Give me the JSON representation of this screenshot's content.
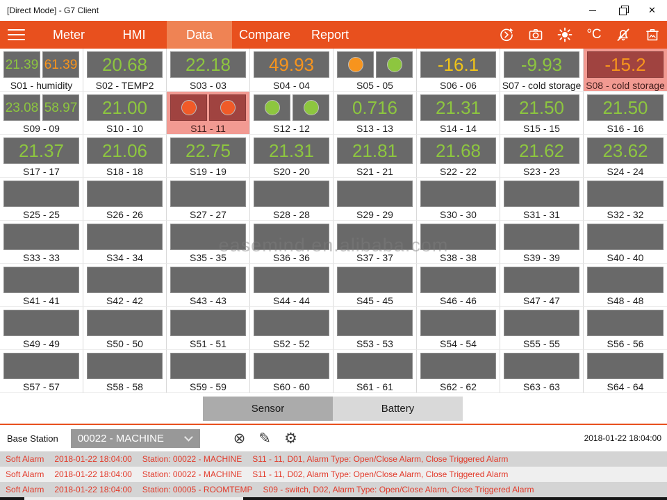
{
  "window": {
    "title": "[Direct Mode] - G7 Client"
  },
  "nav": {
    "items": [
      {
        "label": "Meter",
        "active": false
      },
      {
        "label": "HMI",
        "active": false
      },
      {
        "label": "Data",
        "active": true
      },
      {
        "label": "Compare",
        "active": false
      },
      {
        "label": "Report",
        "active": false
      }
    ],
    "icons": [
      "refresh-icon",
      "camera-icon",
      "brightness-icon",
      "temperature-unit-icon",
      "mute-alarm-icon",
      "snapshot-bin-icon"
    ],
    "temp_unit": "°C"
  },
  "colors": {
    "accent": "#e8501e",
    "accent_active_tab": "#ef8354",
    "green": "#8dc63f",
    "orange": "#f7941d",
    "yellow": "#f0c419",
    "red": "#f05a28",
    "alarm_cell_bg": "#f29a92",
    "alarm_box_bg": "#a04340",
    "box_bg": "#696969",
    "alarm_text": "#e23a2a"
  },
  "grid": {
    "sensors": [
      {
        "label": "S01 - humidity",
        "type": "dual",
        "values": [
          "21.39",
          "61.39"
        ],
        "value_colors": [
          "green",
          "orange"
        ],
        "alarm": false
      },
      {
        "label": "S02 - TEMP2",
        "type": "value",
        "values": [
          "20.68"
        ],
        "value_colors": [
          "green"
        ],
        "alarm": false
      },
      {
        "label": "S03 - 03",
        "type": "value",
        "values": [
          "22.18"
        ],
        "value_colors": [
          "green"
        ],
        "alarm": false
      },
      {
        "label": "S04 - 04",
        "type": "value",
        "values": [
          "49.93"
        ],
        "value_colors": [
          "orange"
        ],
        "alarm": false
      },
      {
        "label": "S05 - 05",
        "type": "dots",
        "dot_colors": [
          "orange",
          "green"
        ],
        "alarm": false
      },
      {
        "label": "S06 - 06",
        "type": "value",
        "values": [
          "-16.1"
        ],
        "value_colors": [
          "yellow"
        ],
        "alarm": false
      },
      {
        "label": "S07 - cold storage",
        "type": "value",
        "values": [
          "-9.93"
        ],
        "value_colors": [
          "green"
        ],
        "alarm": false
      },
      {
        "label": "S08 - cold storage",
        "type": "value",
        "values": [
          "-15.2"
        ],
        "value_colors": [
          "orange"
        ],
        "alarm": true
      },
      {
        "label": "S09 - 09",
        "type": "dual",
        "values": [
          "23.08",
          "58.97"
        ],
        "value_colors": [
          "green",
          "green"
        ],
        "alarm": false
      },
      {
        "label": "S10 - 10",
        "type": "value",
        "values": [
          "21.00"
        ],
        "value_colors": [
          "green"
        ],
        "alarm": false
      },
      {
        "label": "S11 - 11",
        "type": "dots",
        "dot_colors": [
          "red",
          "red"
        ],
        "alarm": true
      },
      {
        "label": "S12 - 12",
        "type": "dots",
        "dot_colors": [
          "green",
          "green"
        ],
        "alarm": false
      },
      {
        "label": "S13 - 13",
        "type": "value",
        "values": [
          "0.716"
        ],
        "value_colors": [
          "green"
        ],
        "alarm": false
      },
      {
        "label": "S14 - 14",
        "type": "value",
        "values": [
          "21.31"
        ],
        "value_colors": [
          "green"
        ],
        "alarm": false
      },
      {
        "label": "S15 - 15",
        "type": "value",
        "values": [
          "21.50"
        ],
        "value_colors": [
          "green"
        ],
        "alarm": false
      },
      {
        "label": "S16 - 16",
        "type": "value",
        "values": [
          "21.50"
        ],
        "value_colors": [
          "green"
        ],
        "alarm": false
      },
      {
        "label": "S17 - 17",
        "type": "value",
        "values": [
          "21.37"
        ],
        "value_colors": [
          "green"
        ],
        "alarm": false
      },
      {
        "label": "S18 - 18",
        "type": "value",
        "values": [
          "21.06"
        ],
        "value_colors": [
          "green"
        ],
        "alarm": false
      },
      {
        "label": "S19 - 19",
        "type": "value",
        "values": [
          "22.75"
        ],
        "value_colors": [
          "green"
        ],
        "alarm": false
      },
      {
        "label": "S20 - 20",
        "type": "value",
        "values": [
          "21.31"
        ],
        "value_colors": [
          "green"
        ],
        "alarm": false
      },
      {
        "label": "S21 - 21",
        "type": "value",
        "values": [
          "21.81"
        ],
        "value_colors": [
          "green"
        ],
        "alarm": false
      },
      {
        "label": "S22 - 22",
        "type": "value",
        "values": [
          "21.68"
        ],
        "value_colors": [
          "green"
        ],
        "alarm": false
      },
      {
        "label": "S23 - 23",
        "type": "value",
        "values": [
          "21.62"
        ],
        "value_colors": [
          "green"
        ],
        "alarm": false
      },
      {
        "label": "S24 - 24",
        "type": "value",
        "values": [
          "23.62"
        ],
        "value_colors": [
          "green"
        ],
        "alarm": false
      },
      {
        "label": "S25 - 25",
        "type": "empty",
        "alarm": false
      },
      {
        "label": "S26 - 26",
        "type": "empty",
        "alarm": false
      },
      {
        "label": "S27 - 27",
        "type": "empty",
        "alarm": false
      },
      {
        "label": "S28 - 28",
        "type": "empty",
        "alarm": false
      },
      {
        "label": "S29 - 29",
        "type": "empty",
        "alarm": false
      },
      {
        "label": "S30 - 30",
        "type": "empty",
        "alarm": false
      },
      {
        "label": "S31 - 31",
        "type": "empty",
        "alarm": false
      },
      {
        "label": "S32 - 32",
        "type": "empty",
        "alarm": false
      },
      {
        "label": "S33 - 33",
        "type": "empty",
        "alarm": false
      },
      {
        "label": "S34 - 34",
        "type": "empty",
        "alarm": false
      },
      {
        "label": "S35 - 35",
        "type": "empty",
        "alarm": false
      },
      {
        "label": "S36 - 36",
        "type": "empty",
        "alarm": false
      },
      {
        "label": "S37 - 37",
        "type": "empty",
        "alarm": false
      },
      {
        "label": "S38 - 38",
        "type": "empty",
        "alarm": false
      },
      {
        "label": "S39 - 39",
        "type": "empty",
        "alarm": false
      },
      {
        "label": "S40 - 40",
        "type": "empty",
        "alarm": false
      },
      {
        "label": "S41 - 41",
        "type": "empty",
        "alarm": false
      },
      {
        "label": "S42 - 42",
        "type": "empty",
        "alarm": false
      },
      {
        "label": "S43 - 43",
        "type": "empty",
        "alarm": false
      },
      {
        "label": "S44 - 44",
        "type": "empty",
        "alarm": false
      },
      {
        "label": "S45 - 45",
        "type": "empty",
        "alarm": false
      },
      {
        "label": "S46 - 46",
        "type": "empty",
        "alarm": false
      },
      {
        "label": "S47 - 47",
        "type": "empty",
        "alarm": false
      },
      {
        "label": "S48 - 48",
        "type": "empty",
        "alarm": false
      },
      {
        "label": "S49 - 49",
        "type": "empty",
        "alarm": false
      },
      {
        "label": "S50 - 50",
        "type": "empty",
        "alarm": false
      },
      {
        "label": "S51 - 51",
        "type": "empty",
        "alarm": false
      },
      {
        "label": "S52 - 52",
        "type": "empty",
        "alarm": false
      },
      {
        "label": "S53 - 53",
        "type": "empty",
        "alarm": false
      },
      {
        "label": "S54 - 54",
        "type": "empty",
        "alarm": false
      },
      {
        "label": "S55 - 55",
        "type": "empty",
        "alarm": false
      },
      {
        "label": "S56 - 56",
        "type": "empty",
        "alarm": false
      },
      {
        "label": "S57 - 57",
        "type": "empty",
        "alarm": false
      },
      {
        "label": "S58 - 58",
        "type": "empty",
        "alarm": false
      },
      {
        "label": "S59 - 59",
        "type": "empty",
        "alarm": false
      },
      {
        "label": "S60 - 60",
        "type": "empty",
        "alarm": false
      },
      {
        "label": "S61 - 61",
        "type": "empty",
        "alarm": false
      },
      {
        "label": "S62 - 62",
        "type": "empty",
        "alarm": false
      },
      {
        "label": "S63 - 63",
        "type": "empty",
        "alarm": false
      },
      {
        "label": "S64 - 64",
        "type": "empty",
        "alarm": false
      }
    ]
  },
  "watermark": "easemind.en.alibaba.com",
  "view_tabs": [
    {
      "label": "Sensor",
      "active": true
    },
    {
      "label": "Battery",
      "active": false
    }
  ],
  "base_station": {
    "label": "Base Station",
    "selected": "00022 - MACHINE",
    "icons": [
      "cancel-icon",
      "edit-pencil-icon",
      "settings-gear-icon"
    ],
    "timestamp": "2018-01-22 18:04:00"
  },
  "alarms": [
    {
      "severity": "Soft Alarm",
      "time": "2018-01-22 18:04:00",
      "station": "Station: 00022 - MACHINE",
      "detail": "S11 - 11, D01, Alarm Type: Open/Close Alarm, Close Triggered Alarm"
    },
    {
      "severity": "Soft Alarm",
      "time": "2018-01-22 18:04:00",
      "station": "Station: 00022 - MACHINE",
      "detail": "S11 - 11, D02, Alarm Type: Open/Close Alarm, Close Triggered Alarm"
    },
    {
      "severity": "Soft Alarm",
      "time": "2018-01-22 18:04:00",
      "station": "Station: 00005 - ROOMTEMP",
      "detail": "S09 - switch, D02, Alarm Type: Open/Close Alarm, Close Triggered Alarm"
    }
  ]
}
